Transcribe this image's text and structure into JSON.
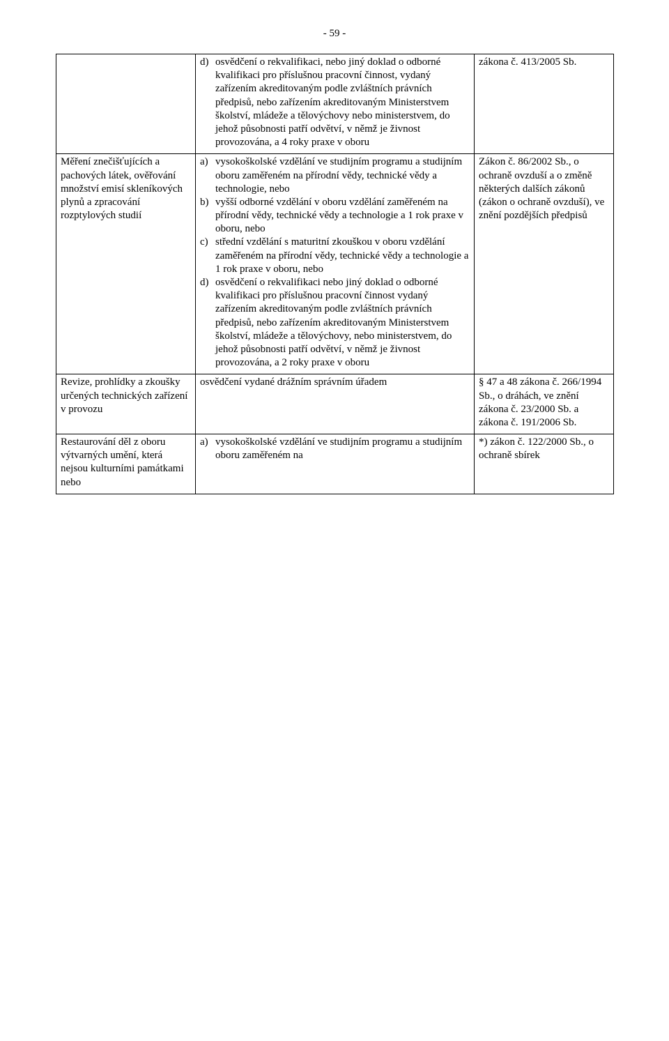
{
  "pageNumber": "- 59 -",
  "rows": [
    {
      "col1": "",
      "col2_items": [
        {
          "marker": "d)",
          "text": "osvědčení o rekvalifikaci, nebo jiný doklad o odborné kvalifikaci pro příslušnou pracovní činnost, vydaný zařízením akreditovaným podle zvláštních právních předpisů, nebo zařízením akreditovaným Ministerstvem školství, mládeže a tělovýchovy nebo ministerstvem, do jehož působnosti patří odvětví, v němž je živnost provozována, a 4 roky praxe v oboru"
        }
      ],
      "col3": "zákona č. 413/2005 Sb."
    },
    {
      "col1": "Měření znečišťujících a pachových látek, ověřování množství emisí skleníkových plynů a zpracování rozptylových studií",
      "col2_items": [
        {
          "marker": "a)",
          "text": "vysokoškolské vzdělání ve studijním programu a studijním oboru zaměřeném na přírodní vědy, technické vědy a technologie, nebo"
        },
        {
          "marker": "b)",
          "text": "vyšší odborné vzdělání v oboru vzdělání zaměřeném na přírodní vědy, technické vědy a technologie a 1 rok praxe v oboru, nebo"
        },
        {
          "marker": "c)",
          "text": "střední vzdělání s maturitní zkouškou v oboru vzdělání zaměřeném na přírodní vědy, technické vědy a technologie a 1 rok praxe v oboru, nebo"
        },
        {
          "marker": "d)",
          "text": "osvědčení o rekvalifikaci nebo jiný doklad o odborné kvalifikaci pro příslušnou pracovní činnost vydaný zařízením akreditovaným podle zvláštních právních předpisů, nebo zařízením akreditovaným Ministerstvem školství, mládeže a tělovýchovy, nebo ministerstvem, do jehož působnosti patří odvětví, v němž je živnost provozována, a 2 roky praxe v oboru"
        }
      ],
      "col3": "Zákon č. 86/2002 Sb., o ochraně ovzduší a o změně některých dalších zákonů (zákon o ochraně ovzduší), ve znění pozdějších předpisů"
    },
    {
      "col1": "Revize, prohlídky a zkoušky určených technických zařízení v provozu",
      "col2_plain": "osvědčení vydané drážním správním úřadem",
      "col3": "§ 47 a 48 zákona č. 266/1994 Sb., o dráhách, ve znění zákona č. 23/2000 Sb. a zákona č. 191/2006 Sb."
    },
    {
      "col1": "Restaurování děl z oboru výtvarných umění, která nejsou kulturními památkami nebo",
      "col2_items": [
        {
          "marker": "a)",
          "text": "vysokoškolské vzdělání ve studijním programu a studijním oboru zaměřeném na"
        }
      ],
      "col3": "*) zákon č. 122/2000 Sb., o ochraně sbírek"
    }
  ]
}
